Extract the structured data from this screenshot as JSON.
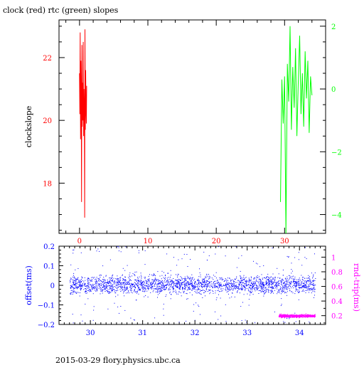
{
  "title": "clock (red) rtc (green) slopes",
  "footer": "2015-03-29 flory.physics.ubc.ca",
  "colors": {
    "clock": "#ff0000",
    "rtc": "#00ff00",
    "offset": "#0000ff",
    "rndtrip": "#ff00ff",
    "frame": "#000000"
  },
  "chart_data": [
    {
      "type": "line",
      "ylabel": "clockslope",
      "xlim": [
        -3,
        36
      ],
      "ylim": [
        16.4,
        23.2
      ],
      "x_ticks": [
        0,
        10,
        20,
        30
      ],
      "y_ticks": [
        18,
        20,
        22
      ],
      "y2label": "",
      "y2lim": [
        -4.6,
        2.2
      ],
      "y2_ticks": [
        -4,
        -2,
        0,
        2
      ],
      "series": [
        {
          "axis": "left",
          "color": "#ff0000",
          "x": [
            0.0,
            0.05,
            0.1,
            0.15,
            0.2,
            0.25,
            0.3,
            0.35,
            0.4,
            0.45,
            0.5,
            0.55,
            0.6,
            0.65,
            0.7,
            0.75,
            0.8,
            0.85,
            0.9,
            0.95,
            1.0,
            1.05
          ],
          "y": [
            21.5,
            20.2,
            22.8,
            19.4,
            21.9,
            20.6,
            17.4,
            22.4,
            19.8,
            21.2,
            20.0,
            22.5,
            19.5,
            21.0,
            20.4,
            16.9,
            22.9,
            19.7,
            21.6,
            20.3,
            19.9,
            21.1
          ]
        },
        {
          "axis": "right",
          "color": "#00ff00",
          "x": [
            29.4,
            29.6,
            29.8,
            30.0,
            30.2,
            30.4,
            30.6,
            30.8,
            31.0,
            31.2,
            31.4,
            31.6,
            31.8,
            32.0,
            32.2,
            32.4,
            32.6,
            32.8,
            33.0,
            33.2,
            33.4,
            33.6,
            33.8,
            34.0
          ],
          "y": [
            -3.6,
            0.3,
            -1.1,
            0.4,
            -4.6,
            0.8,
            -0.4,
            2.0,
            -1.3,
            0.7,
            -0.6,
            1.3,
            -1.5,
            0.2,
            1.7,
            -0.8,
            0.5,
            -1.2,
            1.2,
            -0.3,
            0.9,
            -1.4,
            0.4,
            -0.2
          ]
        }
      ]
    },
    {
      "type": "scatter",
      "ylabel": "offset(ms)",
      "y2label": "rnd-trip(ms)",
      "xlim": [
        29.4,
        34.5
      ],
      "ylim": [
        -0.2,
        0.2
      ],
      "y2lim": [
        0.08,
        1.15
      ],
      "x_ticks": [
        30,
        31,
        32,
        33,
        34
      ],
      "y_ticks": [
        -0.2,
        -0.1,
        0,
        0.1,
        0.2
      ],
      "y_tick_labels": [
        "−0.2",
        "−0.1",
        "0",
        "0.1",
        "0.2"
      ],
      "y2_ticks": [
        0.2,
        0.4,
        0.6,
        0.8,
        1
      ],
      "series": [
        {
          "axis": "left",
          "color": "#0000ff",
          "x_range": [
            29.6,
            34.3
          ],
          "center": 0.005,
          "spread": 0.045,
          "count": 2600
        },
        {
          "axis": "right",
          "color": "#ff00ff",
          "x_range": [
            33.6,
            34.3
          ],
          "center": 0.2,
          "spread": 0.02,
          "count": 700
        }
      ]
    }
  ]
}
